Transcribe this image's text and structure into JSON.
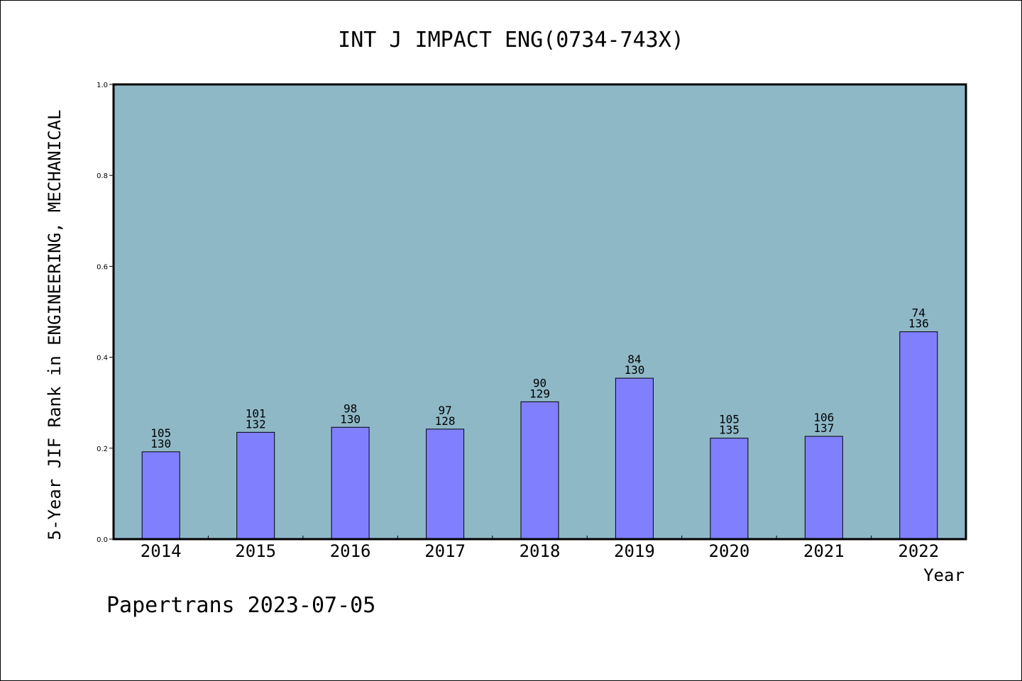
{
  "chart_data": {
    "type": "bar",
    "title": "INT J IMPACT ENG(0734-743X)",
    "xlabel": "Year",
    "ylabel": "5-Year JIF Rank in ENGINEERING, MECHANICAL",
    "categories": [
      "2014",
      "2015",
      "2016",
      "2017",
      "2018",
      "2019",
      "2020",
      "2021",
      "2022"
    ],
    "values": [
      0.192,
      0.235,
      0.246,
      0.242,
      0.302,
      0.354,
      0.222,
      0.226,
      0.456
    ],
    "rank": [
      "105",
      "101",
      "98",
      "97",
      "90",
      "84",
      "105",
      "106",
      "74"
    ],
    "total": [
      "130",
      "132",
      "130",
      "128",
      "129",
      "130",
      "135",
      "137",
      "136"
    ],
    "ylim": [
      0,
      1.0
    ],
    "yticks": [
      "0.0",
      "0.2",
      "0.4",
      "0.6",
      "0.8",
      "1.0"
    ],
    "grid": false,
    "legend": "none",
    "colors": {
      "plot_background": "#8fb8c7",
      "bar_fill": "#8080ff",
      "bar_stroke": "#000000"
    }
  },
  "footer": {
    "text": "Papertrans 2023-07-05"
  }
}
